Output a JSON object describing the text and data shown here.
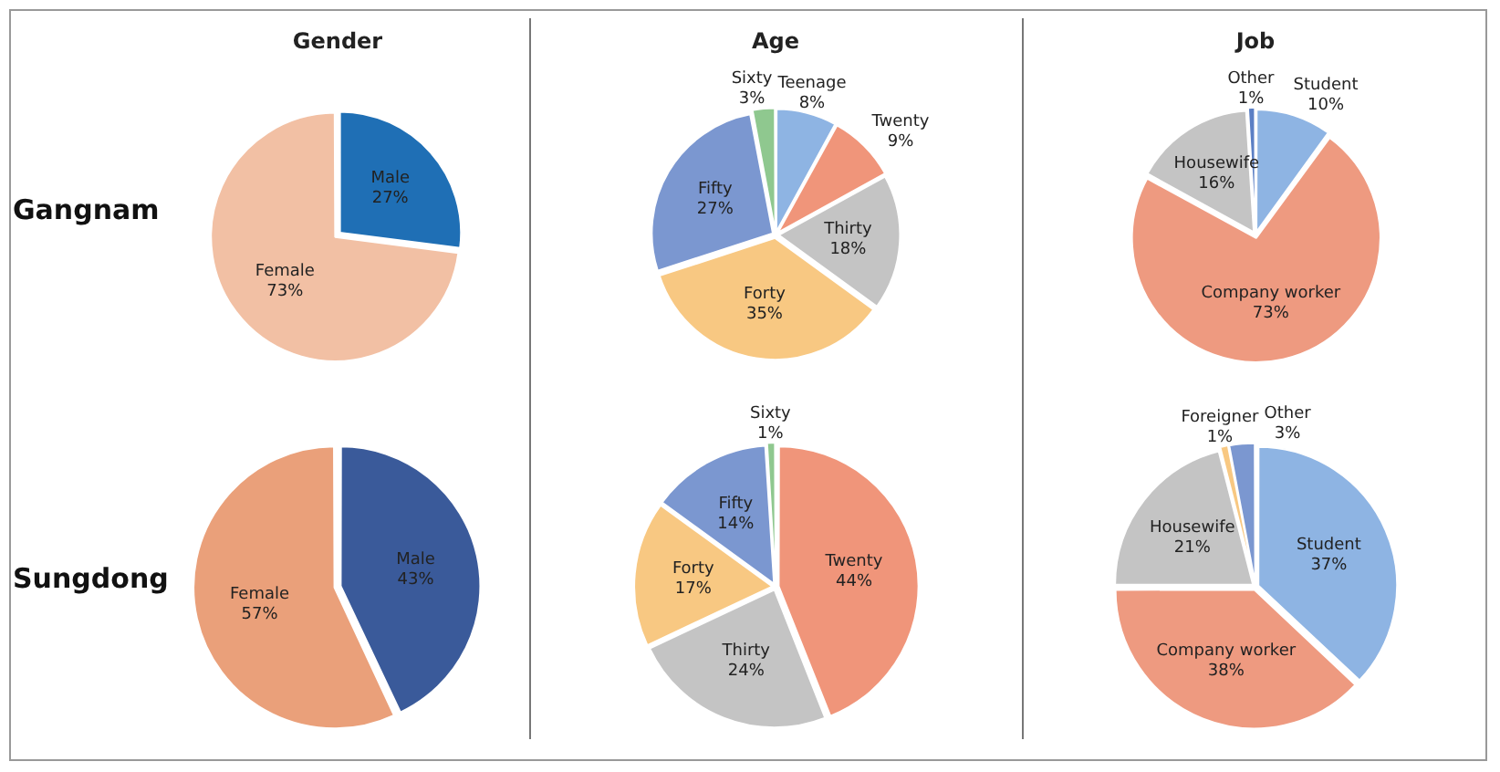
{
  "chart_data": [
    {
      "type": "pie",
      "title": "Gender",
      "ylabel": "Gangnam",
      "categories": [
        "Male",
        "Female"
      ],
      "values": [
        27,
        73
      ],
      "colors": [
        "#1f6fb5",
        "#f2c0a4"
      ],
      "value_labels": [
        "27%",
        "73%"
      ]
    },
    {
      "type": "pie",
      "title": "Age",
      "categories": [
        "Teenage",
        "Twenty",
        "Thirty",
        "Forty",
        "Fifty",
        "Sixty"
      ],
      "values": [
        8,
        9,
        18,
        35,
        27,
        3
      ],
      "colors": [
        "#8eb4e3",
        "#f0957a",
        "#c4c4c4",
        "#f8c882",
        "#7b97d0",
        "#8fc88f"
      ],
      "value_labels": [
        "8%",
        "9%",
        "18%",
        "35%",
        "27%",
        "3%"
      ]
    },
    {
      "type": "pie",
      "title": "Job",
      "categories": [
        "Student",
        "Company worker",
        "Housewife",
        "Other"
      ],
      "values": [
        10,
        73,
        16,
        1
      ],
      "colors": [
        "#8eb4e3",
        "#ee9a80",
        "#c4c4c4",
        "#5b7fc4"
      ],
      "value_labels": [
        "10%",
        "73%",
        "16%",
        "1%"
      ]
    },
    {
      "type": "pie",
      "ylabel": "Sungdong",
      "categories": [
        "Male",
        "Female"
      ],
      "values": [
        43,
        57
      ],
      "colors": [
        "#3a5a9a",
        "#eaa07a"
      ],
      "value_labels": [
        "43%",
        "57%"
      ]
    },
    {
      "type": "pie",
      "categories": [
        "Twenty",
        "Thirty",
        "Forty",
        "Fifty",
        "Sixty"
      ],
      "values": [
        44,
        24,
        17,
        14,
        1
      ],
      "colors": [
        "#f0957a",
        "#c4c4c4",
        "#f8c882",
        "#7b97d0",
        "#8fc88f"
      ],
      "value_labels": [
        "44%",
        "24%",
        "17%",
        "14%",
        "1%"
      ]
    },
    {
      "type": "pie",
      "categories": [
        "Student",
        "Company worker",
        "Housewife",
        "Foreigner",
        "Other"
      ],
      "values": [
        37,
        38,
        21,
        1,
        3
      ],
      "colors": [
        "#8eb4e3",
        "#ee9a80",
        "#c4c4c4",
        "#f8c882",
        "#7b97d0"
      ],
      "value_labels": [
        "37%",
        "38%",
        "21%",
        "1%",
        "3%"
      ]
    }
  ]
}
